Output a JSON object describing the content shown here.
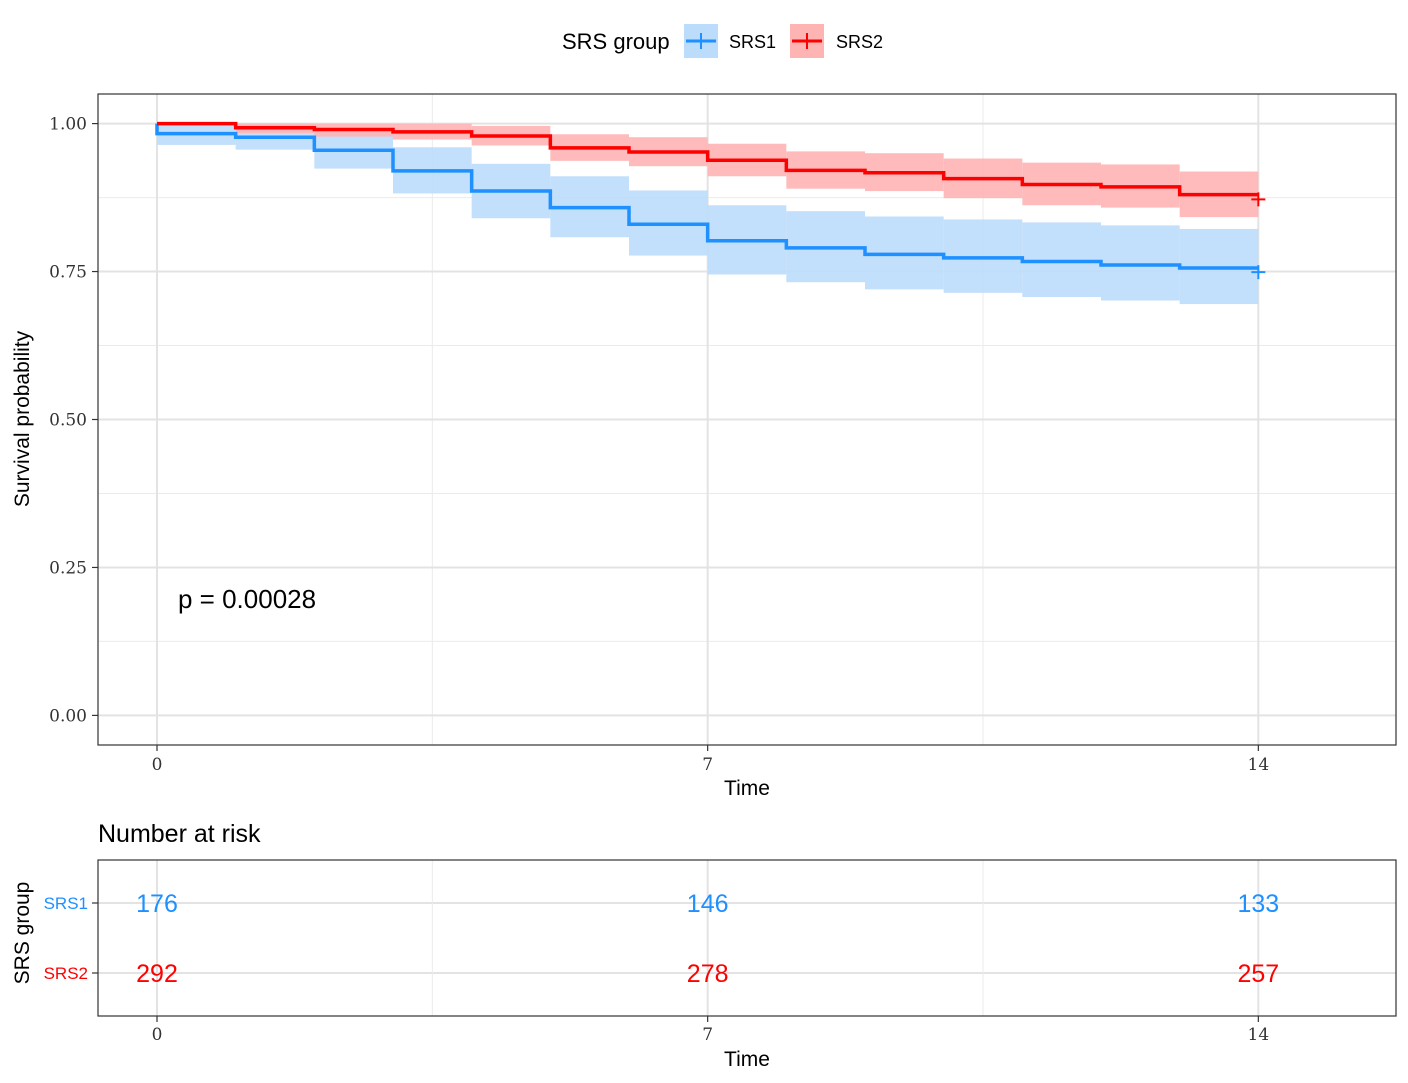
{
  "legend": {
    "title": "SRS group",
    "items": [
      {
        "label": "SRS1",
        "color": "#1E90FF",
        "fill": "#BBDCFB"
      },
      {
        "label": "SRS2",
        "color": "#FF0000",
        "fill": "#FFB4B4"
      }
    ]
  },
  "pvalue_text": "p = 0.00028",
  "risk_table": {
    "title": "Number at risk",
    "ylabel": "SRS group",
    "xlabel": "Time",
    "times": [
      0,
      7,
      14
    ],
    "rows": [
      {
        "label": "SRS1",
        "color": "#1E90FF",
        "values": [
          "176",
          "146",
          "133"
        ]
      },
      {
        "label": "SRS2",
        "color": "#FF0000",
        "values": [
          "292",
          "278",
          "257"
        ]
      }
    ]
  },
  "chart_data": {
    "type": "line",
    "subtype": "kaplan-meier step",
    "xlabel": "Time",
    "ylabel": "Survival probability",
    "xlim": [
      -0.75,
      15.75
    ],
    "ylim": [
      -0.05,
      1.05
    ],
    "xticks": [
      0,
      7,
      14
    ],
    "xtick_labels": [
      "0",
      "7",
      "14"
    ],
    "yticks": [
      0,
      0.25,
      0.5,
      0.75,
      1
    ],
    "ytick_labels": [
      "0.00",
      "0.25",
      "0.50",
      "0.75",
      "1.00"
    ],
    "grid": true,
    "legend_position": "top",
    "series": [
      {
        "name": "SRS1",
        "color": "#1E90FF",
        "band_color": "#BBDCFB",
        "steps": [
          {
            "t": 0,
            "s": 0.983,
            "lo": 0.964,
            "hi": 1.0
          },
          {
            "t": 1,
            "s": 0.977,
            "lo": 0.956,
            "hi": 1.0
          },
          {
            "t": 2,
            "s": 0.955,
            "lo": 0.924,
            "hi": 0.985
          },
          {
            "t": 3,
            "s": 0.92,
            "lo": 0.882,
            "hi": 0.96
          },
          {
            "t": 4,
            "s": 0.886,
            "lo": 0.84,
            "hi": 0.932
          },
          {
            "t": 5,
            "s": 0.858,
            "lo": 0.808,
            "hi": 0.911
          },
          {
            "t": 6,
            "s": 0.83,
            "lo": 0.777,
            "hi": 0.887
          },
          {
            "t": 7,
            "s": 0.802,
            "lo": 0.745,
            "hi": 0.862
          },
          {
            "t": 8,
            "s": 0.79,
            "lo": 0.732,
            "hi": 0.852
          },
          {
            "t": 9,
            "s": 0.779,
            "lo": 0.72,
            "hi": 0.843
          },
          {
            "t": 10,
            "s": 0.773,
            "lo": 0.714,
            "hi": 0.838
          },
          {
            "t": 11,
            "s": 0.767,
            "lo": 0.707,
            "hi": 0.833
          },
          {
            "t": 12,
            "s": 0.761,
            "lo": 0.701,
            "hi": 0.828
          },
          {
            "t": 13,
            "s": 0.756,
            "lo": 0.695,
            "hi": 0.822
          }
        ],
        "end_time": 14,
        "censor": {
          "t": 14,
          "s": 0.749
        }
      },
      {
        "name": "SRS2",
        "color": "#FF0000",
        "band_color": "#FFB4B4",
        "steps": [
          {
            "t": 0,
            "s": 1.0,
            "lo": 1.0,
            "hi": 1.0
          },
          {
            "t": 1,
            "s": 0.993,
            "lo": 0.984,
            "hi": 1.0
          },
          {
            "t": 2,
            "s": 0.99,
            "lo": 0.978,
            "hi": 1.0
          },
          {
            "t": 3,
            "s": 0.986,
            "lo": 0.973,
            "hi": 1.0
          },
          {
            "t": 4,
            "s": 0.979,
            "lo": 0.963,
            "hi": 0.996
          },
          {
            "t": 5,
            "s": 0.959,
            "lo": 0.937,
            "hi": 0.982
          },
          {
            "t": 6,
            "s": 0.952,
            "lo": 0.928,
            "hi": 0.977
          },
          {
            "t": 7,
            "s": 0.938,
            "lo": 0.911,
            "hi": 0.966
          },
          {
            "t": 8,
            "s": 0.921,
            "lo": 0.89,
            "hi": 0.953
          },
          {
            "t": 9,
            "s": 0.917,
            "lo": 0.886,
            "hi": 0.95
          },
          {
            "t": 10,
            "s": 0.907,
            "lo": 0.874,
            "hi": 0.941
          },
          {
            "t": 11,
            "s": 0.897,
            "lo": 0.862,
            "hi": 0.934
          },
          {
            "t": 12,
            "s": 0.893,
            "lo": 0.858,
            "hi": 0.931
          },
          {
            "t": 13,
            "s": 0.88,
            "lo": 0.842,
            "hi": 0.919
          }
        ],
        "end_time": 14,
        "censor": {
          "t": 14,
          "s": 0.872
        }
      }
    ]
  }
}
